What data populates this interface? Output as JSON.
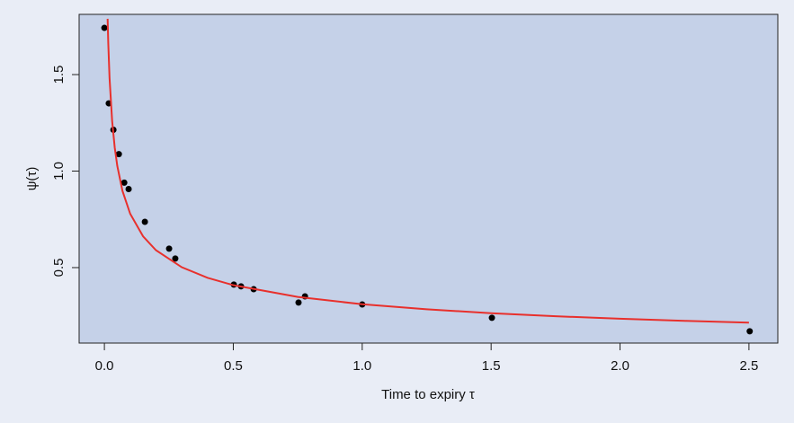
{
  "chart_data": {
    "type": "scatter",
    "x_label": "Time to expiry τ",
    "y_label": "ψ(τ)",
    "xlim": [
      -0.098,
      2.612
    ],
    "ylim": [
      0.109,
      1.812
    ],
    "xticks": [
      {
        "value": 0,
        "label": "0.0"
      },
      0.5,
      {
        "value": 1,
        "label": "1.0"
      },
      1.5,
      {
        "value": 2,
        "label": "2.0"
      },
      2.5
    ],
    "yticks": [
      0.5,
      {
        "value": 1,
        "label": "1.0"
      },
      1.5
    ],
    "background": "#c5d1e8",
    "series": [
      {
        "type": "scatter",
        "color": "#000000",
        "x": [
          0,
          0.017,
          0.035,
          0.056,
          0.077,
          0.094,
          0.157,
          0.251,
          0.275,
          0.502,
          0.53,
          0.579,
          0.753,
          0.778,
          1.0,
          1.503,
          2.503
        ],
        "y": [
          1.742,
          1.351,
          1.214,
          1.088,
          0.94,
          0.907,
          0.737,
          0.598,
          0.547,
          0.412,
          0.403,
          0.388,
          0.319,
          0.351,
          0.309,
          0.24,
          0.17
        ]
      },
      {
        "type": "line",
        "color": "#e8302c",
        "x": [
          0.0125,
          0.015,
          0.02,
          0.03,
          0.04,
          0.05,
          0.07,
          0.1,
          0.15,
          0.2,
          0.3,
          0.4,
          0.5,
          0.75,
          1.0,
          1.25,
          1.5,
          1.75,
          2.0,
          2.25,
          2.5
        ],
        "y": [
          1.789,
          1.663,
          1.482,
          1.26,
          1.123,
          1.027,
          0.898,
          0.779,
          0.662,
          0.59,
          0.502,
          0.447,
          0.409,
          0.348,
          0.31,
          0.284,
          0.264,
          0.248,
          0.235,
          0.224,
          0.215
        ]
      }
    ]
  }
}
